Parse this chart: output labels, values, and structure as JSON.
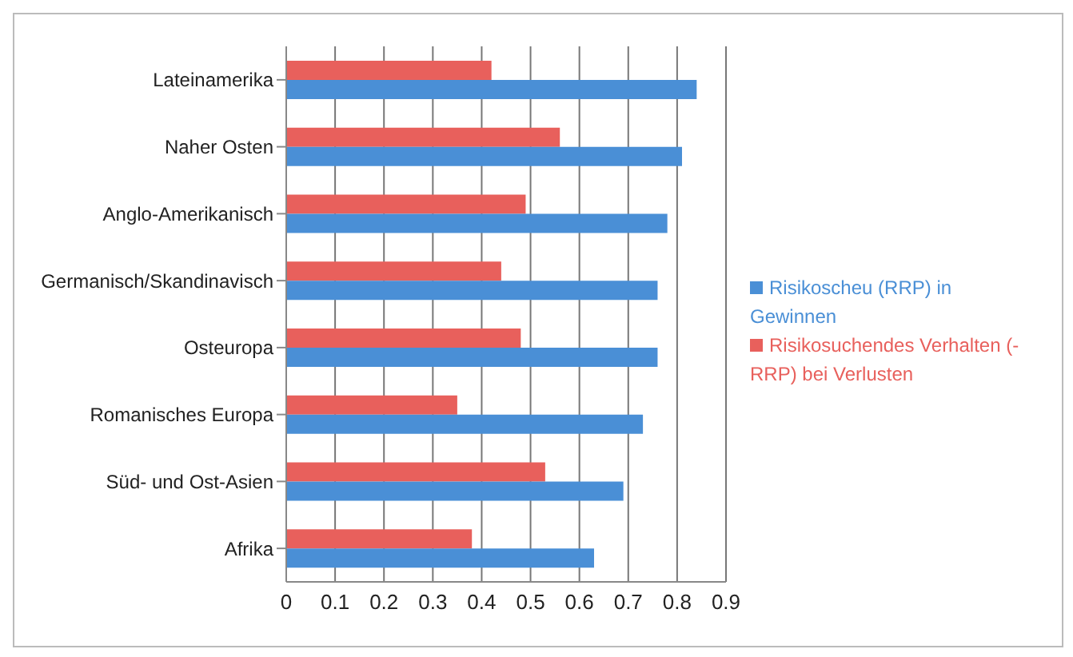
{
  "chart_data": {
    "type": "bar",
    "orientation": "horizontal",
    "categories": [
      "Lateinamerika",
      "Naher Osten",
      "Anglo-Amerikanisch",
      "Germanisch/Skandinavisch",
      "Osteuropa",
      "Romanisches Europa",
      "Süd- und Ost-Asien",
      "Afrika"
    ],
    "series": [
      {
        "name": "Risikosuchendes Verhalten (-RRP) bei Verlusten",
        "color": "#e8605c",
        "values": [
          0.42,
          0.56,
          0.49,
          0.44,
          0.48,
          0.35,
          0.53,
          0.38
        ]
      },
      {
        "name": "Risikoscheu (RRP) in Gewinnen",
        "color": "#4a8fd6",
        "values": [
          0.84,
          0.81,
          0.78,
          0.76,
          0.76,
          0.73,
          0.69,
          0.63
        ]
      }
    ],
    "xlim": [
      0,
      0.9
    ],
    "xticks": [
      0,
      0.1,
      0.2,
      0.3,
      0.4,
      0.5,
      0.6,
      0.7,
      0.8,
      0.9
    ],
    "grid": "x",
    "legend": "right"
  }
}
